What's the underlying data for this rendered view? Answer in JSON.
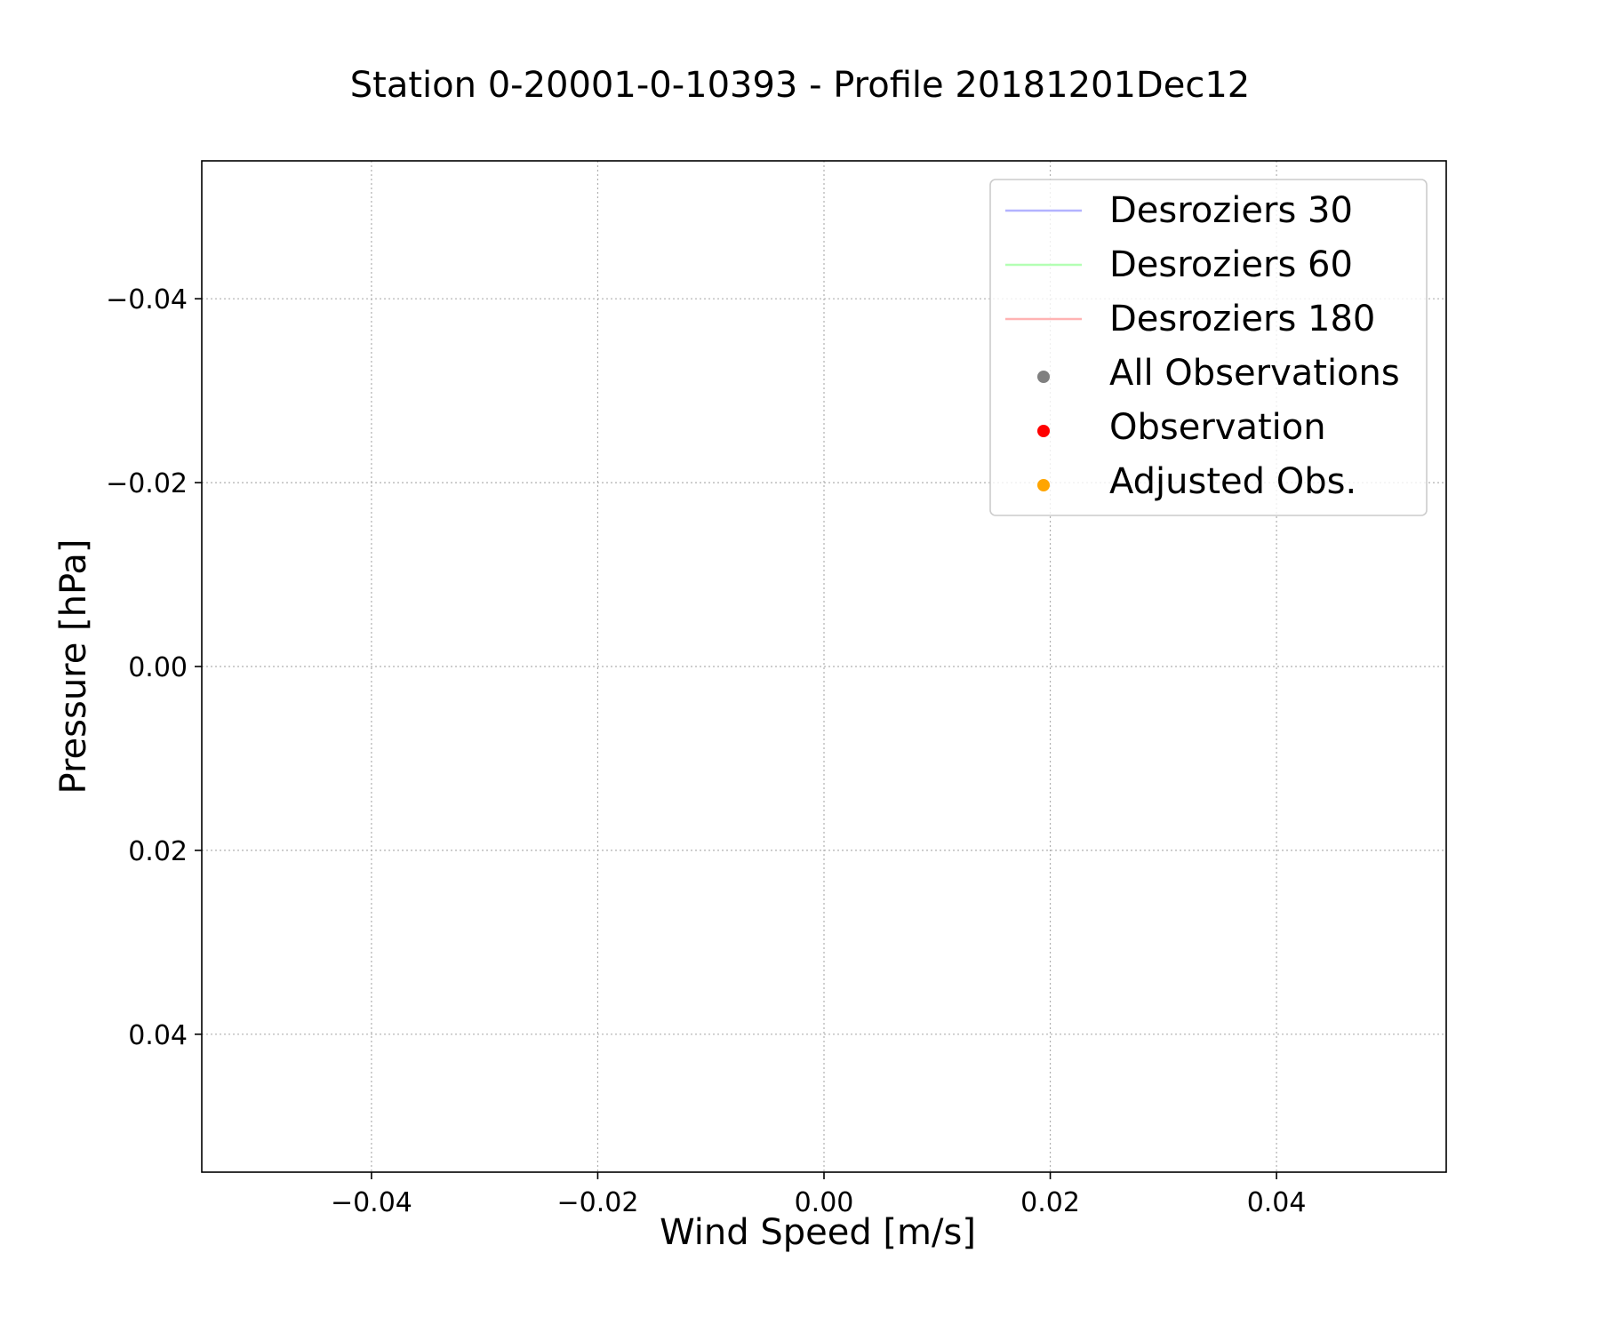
{
  "chart_data": {
    "type": "scatter",
    "title": "Station 0-20001-0-10393 - Profile 20181201Dec12",
    "xlabel": "Wind Speed [m/s]",
    "ylabel": "Pressure [hPa]",
    "xlim": [
      -0.055,
      0.055
    ],
    "ylim": [
      0.055,
      -0.055
    ],
    "y_inverted": true,
    "xticks": [
      -0.04,
      -0.02,
      0.0,
      0.02,
      0.04
    ],
    "xtick_labels": [
      "−0.04",
      "−0.02",
      "0.00",
      "0.02",
      "0.04"
    ],
    "yticks": [
      -0.04,
      -0.02,
      0.0,
      0.02,
      0.04
    ],
    "ytick_labels": [
      "−0.04",
      "−0.02",
      "0.00",
      "0.02",
      "0.04"
    ],
    "grid": true,
    "grid_style": "dotted",
    "legend_position": "top-right",
    "legend": [
      {
        "label": "Desroziers 30",
        "kind": "line",
        "color": "#b3b3ff"
      },
      {
        "label": "Desroziers 60",
        "kind": "line",
        "color": "#b3ffb3"
      },
      {
        "label": "Desroziers 180",
        "kind": "line",
        "color": "#ffb3b3"
      },
      {
        "label": "All Observations",
        "kind": "marker",
        "color": "#808080"
      },
      {
        "label": "Observation",
        "kind": "marker",
        "color": "#ff0000"
      },
      {
        "label": "Adjusted Obs.",
        "kind": "marker",
        "color": "#ffa500"
      }
    ],
    "series": [
      {
        "name": "Desroziers 30",
        "x": [],
        "y": []
      },
      {
        "name": "Desroziers 60",
        "x": [],
        "y": []
      },
      {
        "name": "Desroziers 180",
        "x": [],
        "y": []
      },
      {
        "name": "All Observations",
        "x": [],
        "y": []
      },
      {
        "name": "Observation",
        "x": [],
        "y": []
      },
      {
        "name": "Adjusted Obs.",
        "x": [],
        "y": []
      }
    ]
  }
}
